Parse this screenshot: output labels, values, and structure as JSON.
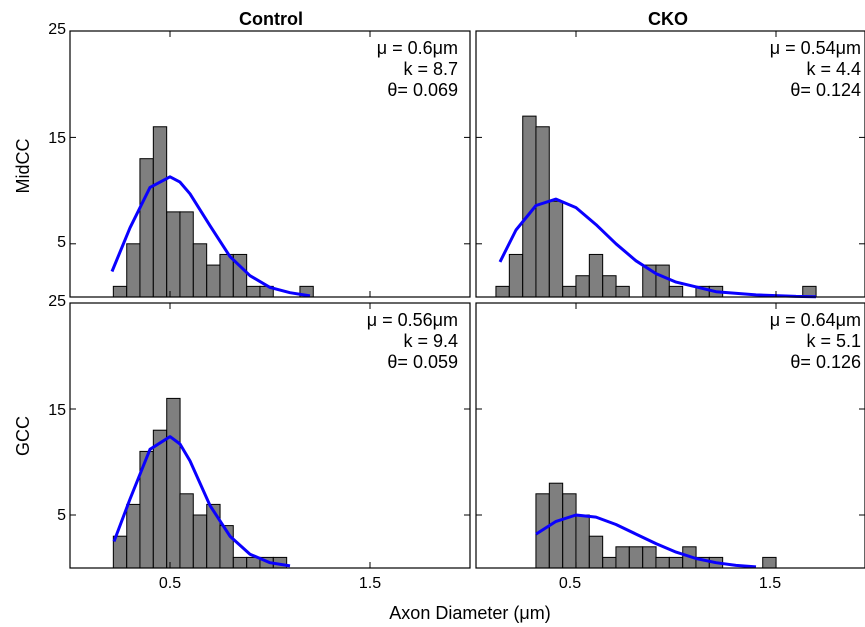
{
  "figure": {
    "xlabel": "Axon Diameter (μm)",
    "x_tick_labels": [
      "0.5",
      "1.5"
    ],
    "y_tick_labels": [
      "5",
      "15",
      "25"
    ]
  },
  "chart_data": [
    {
      "type": "bar",
      "column_title": "Control",
      "row_label": "MidCC",
      "stats": {
        "mu": "μ = 0.6μm",
        "k": "k = 8.7",
        "theta": "θ= 0.069"
      },
      "x": [
        0.25,
        0.317,
        0.383,
        0.45,
        0.517,
        0.583,
        0.65,
        0.717,
        0.783,
        0.85,
        0.917,
        0.983,
        1.05,
        1.117,
        1.183
      ],
      "values": [
        1,
        5,
        13,
        16,
        8,
        8,
        5,
        3,
        4,
        4,
        1,
        1,
        0,
        0,
        1
      ],
      "bin_width": 0.0667,
      "fit_curve": {
        "x": [
          0.21,
          0.3,
          0.4,
          0.5,
          0.55,
          0.6,
          0.7,
          0.8,
          0.9,
          1.0,
          1.1,
          1.2
        ],
        "y": [
          2.4,
          6.5,
          10.3,
          11.3,
          10.8,
          9.7,
          6.7,
          3.8,
          2.0,
          0.9,
          0.4,
          0.1
        ]
      },
      "xlim": [
        0.0,
        1.95
      ],
      "ylim": [
        0,
        25
      ]
    },
    {
      "type": "bar",
      "column_title": "CKO",
      "row_label": "",
      "stats": {
        "mu": "μ = 0.54μm",
        "k": "k = 4.4",
        "theta": "θ= 0.124"
      },
      "x": [
        0.133,
        0.2,
        0.267,
        0.333,
        0.4,
        0.467,
        0.533,
        0.6,
        0.667,
        0.733,
        0.8,
        0.867,
        0.933,
        1.0,
        1.067,
        1.133,
        1.2,
        1.267,
        1.333,
        1.4,
        1.467,
        1.533,
        1.6,
        1.667
      ],
      "values": [
        1,
        4,
        17,
        16,
        9,
        1,
        2,
        4,
        2,
        1,
        0,
        3,
        3,
        1,
        0,
        1,
        1,
        0,
        0,
        0,
        0,
        0,
        0,
        1
      ],
      "bin_width": 0.0667,
      "fit_curve": {
        "x": [
          0.12,
          0.2,
          0.3,
          0.4,
          0.5,
          0.6,
          0.7,
          0.8,
          0.9,
          1.0,
          1.2,
          1.4,
          1.6,
          1.7
        ],
        "y": [
          3.3,
          6.3,
          8.6,
          9.2,
          8.4,
          6.8,
          5.0,
          3.4,
          2.2,
          1.4,
          0.5,
          0.2,
          0.06,
          0.03
        ]
      },
      "xlim": [
        0.0,
        1.95
      ],
      "ylim": [
        0,
        25
      ]
    },
    {
      "type": "bar",
      "column_title": "",
      "row_label": "GCC",
      "stats": {
        "mu": "μ = 0.56μm",
        "k": "k = 9.4",
        "theta": "θ= 0.059"
      },
      "x": [
        0.25,
        0.317,
        0.383,
        0.45,
        0.517,
        0.583,
        0.65,
        0.717,
        0.783,
        0.85,
        0.917,
        0.983,
        1.05
      ],
      "values": [
        3,
        6,
        11,
        13,
        16,
        7,
        5,
        6,
        4,
        1,
        1,
        1,
        1
      ],
      "bin_width": 0.0667,
      "fit_curve": {
        "x": [
          0.22,
          0.3,
          0.4,
          0.5,
          0.55,
          0.6,
          0.7,
          0.8,
          0.9,
          1.0,
          1.1
        ],
        "y": [
          2.5,
          6.5,
          11.2,
          12.4,
          11.7,
          10.1,
          5.9,
          3.0,
          1.3,
          0.5,
          0.2
        ]
      },
      "xlim": [
        0.0,
        1.95
      ],
      "ylim": [
        0,
        25
      ]
    },
    {
      "type": "bar",
      "column_title": "",
      "row_label": "",
      "stats": {
        "mu": "μ = 0.64μm",
        "k": "k = 5.1",
        "theta": "θ= 0.126"
      },
      "x": [
        0.333,
        0.4,
        0.467,
        0.533,
        0.6,
        0.667,
        0.733,
        0.8,
        0.867,
        0.933,
        1.0,
        1.067,
        1.133,
        1.2,
        1.267,
        1.333,
        1.4,
        1.467
      ],
      "values": [
        7,
        8,
        7,
        5,
        3,
        1,
        2,
        2,
        2,
        1,
        1,
        2,
        1,
        1,
        0,
        0,
        0,
        1
      ],
      "bin_width": 0.0667,
      "fit_curve": {
        "x": [
          0.3,
          0.4,
          0.5,
          0.6,
          0.7,
          0.8,
          0.9,
          1.0,
          1.1,
          1.2,
          1.3,
          1.4
        ],
        "y": [
          3.2,
          4.4,
          5.0,
          4.8,
          4.1,
          3.2,
          2.3,
          1.5,
          0.9,
          0.5,
          0.25,
          0.1
        ]
      },
      "xlim": [
        0.0,
        1.95
      ],
      "ylim": [
        0,
        25
      ]
    }
  ]
}
